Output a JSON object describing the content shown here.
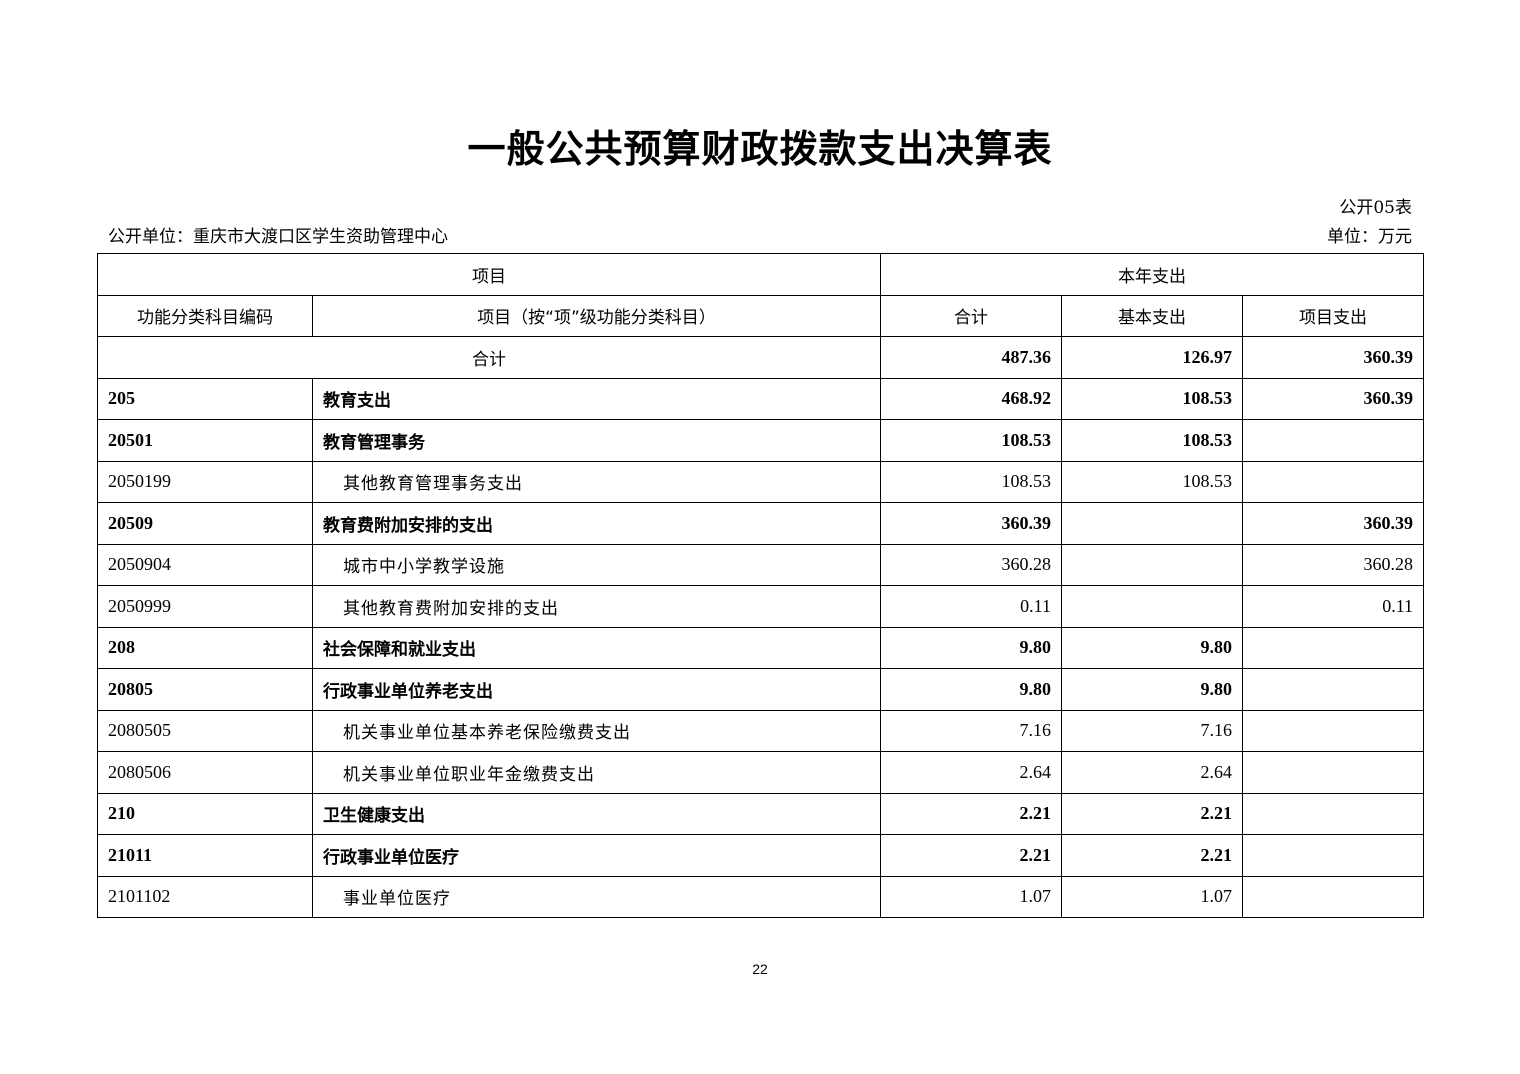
{
  "title": "一般公共预算财政拨款支出决算表",
  "table_no": "公开05表",
  "unit_org": "公开单位：重庆市大渡口区学生资助管理中心",
  "unit": "单位：万元",
  "header": {
    "item": "项目",
    "current_year": "本年支出",
    "code": "功能分类科目编码",
    "name": "项目（按“项”级功能分类科目）",
    "total": "合计",
    "basic": "基本支出",
    "project": "项目支出"
  },
  "total_row": {
    "label": "合计",
    "total": "487.36",
    "basic": "126.97",
    "project": "360.39"
  },
  "rows": [
    {
      "code": "205",
      "name": "教育支出",
      "total": "468.92",
      "basic": "108.53",
      "project": "360.39",
      "level": "bold"
    },
    {
      "code": "20501",
      "name": "教育管理事务",
      "total": "108.53",
      "basic": "108.53",
      "project": "",
      "level": "bold"
    },
    {
      "code": "2050199",
      "name": "其他教育管理事务支出",
      "total": "108.53",
      "basic": "108.53",
      "project": "",
      "level": "sub"
    },
    {
      "code": "20509",
      "name": "教育费附加安排的支出",
      "total": "360.39",
      "basic": "",
      "project": "360.39",
      "level": "bold"
    },
    {
      "code": "2050904",
      "name": "城市中小学教学设施",
      "total": "360.28",
      "basic": "",
      "project": "360.28",
      "level": "sub"
    },
    {
      "code": "2050999",
      "name": "其他教育费附加安排的支出",
      "total": "0.11",
      "basic": "",
      "project": "0.11",
      "level": "sub"
    },
    {
      "code": "208",
      "name": "社会保障和就业支出",
      "total": "9.80",
      "basic": "9.80",
      "project": "",
      "level": "bold"
    },
    {
      "code": "20805",
      "name": "行政事业单位养老支出",
      "total": "9.80",
      "basic": "9.80",
      "project": "",
      "level": "bold"
    },
    {
      "code": "2080505",
      "name": "机关事业单位基本养老保险缴费支出",
      "total": "7.16",
      "basic": "7.16",
      "project": "",
      "level": "sub"
    },
    {
      "code": "2080506",
      "name": "机关事业单位职业年金缴费支出",
      "total": "2.64",
      "basic": "2.64",
      "project": "",
      "level": "sub"
    },
    {
      "code": "210",
      "name": "卫生健康支出",
      "total": "2.21",
      "basic": "2.21",
      "project": "",
      "level": "bold"
    },
    {
      "code": "21011",
      "name": "行政事业单位医疗",
      "total": "2.21",
      "basic": "2.21",
      "project": "",
      "level": "bold"
    },
    {
      "code": "2101102",
      "name": "事业单位医疗",
      "total": "1.07",
      "basic": "1.07",
      "project": "",
      "level": "sub"
    }
  ],
  "page_number": "22"
}
